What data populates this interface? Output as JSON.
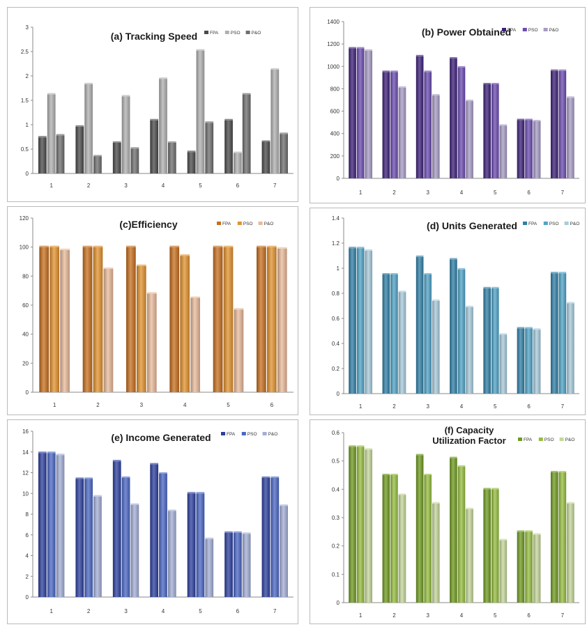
{
  "chart_data": [
    {
      "id": "a",
      "type": "bar",
      "title_lines": [
        "(a) Tracking Speed"
      ],
      "categories": [
        "1",
        "2",
        "3",
        "4",
        "5",
        "6",
        "7"
      ],
      "yticks": [
        "0",
        "0.5",
        "1",
        "1.5",
        "2",
        "2.5",
        "3"
      ],
      "ylim": [
        0,
        3
      ],
      "legend_position": "top-right",
      "grid": false,
      "series": [
        {
          "name": "FPA",
          "color": "#4a4a4a",
          "values": [
            0.74,
            0.96,
            0.63,
            1.09,
            0.44,
            1.09,
            0.65
          ]
        },
        {
          "name": "PSO",
          "color": "#b0b0b0",
          "values": [
            1.62,
            1.83,
            1.58,
            1.94,
            2.52,
            0.42,
            2.13
          ]
        },
        {
          "name": "P&O",
          "color": "#6e6e6e",
          "values": [
            0.78,
            0.35,
            0.51,
            0.63,
            1.04,
            1.62,
            0.81
          ]
        }
      ]
    },
    {
      "id": "b",
      "type": "bar",
      "title_lines": [
        "(b) Power Obtained"
      ],
      "categories": [
        "1",
        "2",
        "3",
        "4",
        "5",
        "6",
        "7"
      ],
      "yticks": [
        "0",
        "200",
        "400",
        "600",
        "800",
        "1000",
        "1200",
        "1400"
      ],
      "ylim": [
        0,
        1400
      ],
      "legend_position": "top-right",
      "grid": false,
      "series": [
        {
          "name": "FPA",
          "color": "#3c1f78",
          "values": [
            1160,
            950,
            1090,
            1070,
            840,
            520,
            960
          ]
        },
        {
          "name": "PSO",
          "color": "#6a4bb0",
          "values": [
            1160,
            950,
            950,
            990,
            840,
            520,
            960
          ]
        },
        {
          "name": "P&O",
          "color": "#a79bc4",
          "values": [
            1140,
            810,
            740,
            690,
            470,
            510,
            720
          ]
        }
      ]
    },
    {
      "id": "c",
      "type": "bar",
      "title_lines": [
        "(c)Efficiency"
      ],
      "categories": [
        "1",
        "2",
        "3",
        "4",
        "5",
        "6"
      ],
      "yticks": [
        "0",
        "20",
        "40",
        "60",
        "80",
        "100",
        "120"
      ],
      "ylim": [
        0,
        120
      ],
      "legend_position": "top-right",
      "grid": false,
      "series": [
        {
          "name": "FPA",
          "color": "#c76f1e",
          "values": [
            100,
            100,
            100,
            100,
            100,
            100
          ]
        },
        {
          "name": "PSO",
          "color": "#e2922e",
          "values": [
            100,
            100,
            87,
            94,
            100,
            100
          ]
        },
        {
          "name": "P&O",
          "color": "#e8b99a",
          "values": [
            98,
            85,
            68,
            65,
            57,
            99
          ]
        }
      ]
    },
    {
      "id": "d",
      "type": "bar",
      "title_lines": [
        "(d) Units Generated"
      ],
      "categories": [
        "1",
        "2",
        "3",
        "4",
        "5",
        "6",
        "7"
      ],
      "yticks": [
        "0",
        "0.2",
        "0.4",
        "0.6",
        "0.8",
        "1",
        "1.2",
        "1.4"
      ],
      "ylim": [
        0,
        1.4
      ],
      "legend_position": "top-right",
      "grid": false,
      "series": [
        {
          "name": "FPA",
          "color": "#2f7fa6",
          "values": [
            1.16,
            0.95,
            1.09,
            1.07,
            0.84,
            0.52,
            0.96
          ]
        },
        {
          "name": "PSO",
          "color": "#4fa3c7",
          "values": [
            1.16,
            0.95,
            0.95,
            0.99,
            0.84,
            0.52,
            0.96
          ]
        },
        {
          "name": "P&O",
          "color": "#a8cadb",
          "values": [
            1.14,
            0.81,
            0.74,
            0.69,
            0.47,
            0.51,
            0.72
          ]
        }
      ]
    },
    {
      "id": "e",
      "type": "bar",
      "title_lines": [
        "(e) Income Generated"
      ],
      "categories": [
        "1",
        "2",
        "3",
        "4",
        "5",
        "6",
        "7"
      ],
      "yticks": [
        "0",
        "2",
        "4",
        "6",
        "8",
        "10",
        "12",
        "14",
        "16"
      ],
      "ylim": [
        0,
        16
      ],
      "legend_position": "top-right",
      "grid": false,
      "series": [
        {
          "name": "FPA",
          "color": "#2c3f9e",
          "values": [
            13.9,
            11.4,
            13.1,
            12.8,
            10.0,
            6.2,
            11.5
          ]
        },
        {
          "name": "PSO",
          "color": "#4a66c4",
          "values": [
            13.9,
            11.4,
            11.5,
            11.9,
            10.0,
            6.2,
            11.5
          ]
        },
        {
          "name": "P&O",
          "color": "#a3aed6",
          "values": [
            13.7,
            9.7,
            8.9,
            8.3,
            5.6,
            6.1,
            8.8
          ]
        }
      ]
    },
    {
      "id": "f",
      "type": "bar",
      "title_lines": [
        "(f) Capacity",
        "Utilization Factor"
      ],
      "categories": [
        "1",
        "2",
        "3",
        "4",
        "5",
        "6",
        "7"
      ],
      "yticks": [
        "0",
        "0.1",
        "0.2",
        "0.3",
        "0.4",
        "0.5",
        "0.6"
      ],
      "ylim": [
        0,
        0.6
      ],
      "legend_position": "top-right",
      "grid": false,
      "series": [
        {
          "name": "FPA",
          "color": "#6f9a1f",
          "values": [
            0.55,
            0.45,
            0.52,
            0.51,
            0.4,
            0.25,
            0.46
          ]
        },
        {
          "name": "PSO",
          "color": "#95bd3e",
          "values": [
            0.55,
            0.45,
            0.45,
            0.48,
            0.4,
            0.25,
            0.46
          ]
        },
        {
          "name": "P&O",
          "color": "#c4d69a",
          "values": [
            0.54,
            0.38,
            0.35,
            0.33,
            0.22,
            0.24,
            0.35
          ]
        }
      ]
    }
  ]
}
